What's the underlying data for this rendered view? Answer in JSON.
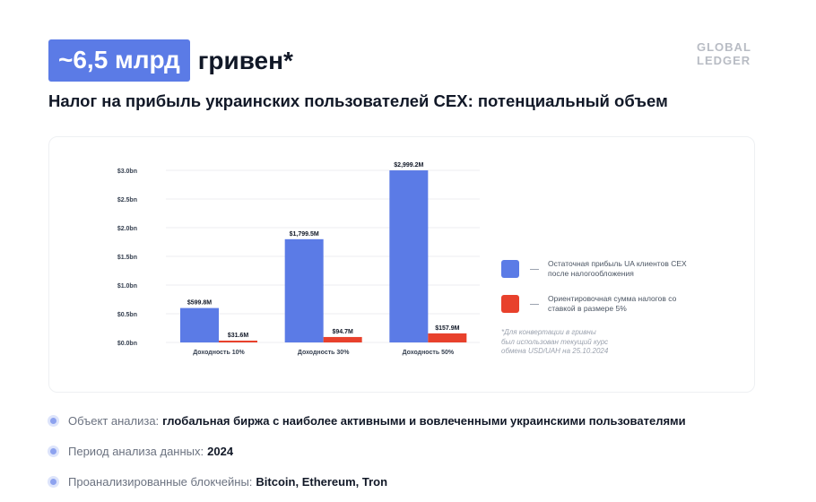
{
  "header": {
    "badge": "~6,5 млрд",
    "headline_rest": "гривен*",
    "subtitle": "Налог на прибыль украинских пользователей CEX: потенциальный объем"
  },
  "logo": {
    "line1": "GLOBAL",
    "line2": "LEDGER"
  },
  "chart_data": {
    "type": "bar",
    "categories": [
      "Доходность 10%",
      "Доходность 30%",
      "Доходность 50%"
    ],
    "series": [
      {
        "name": "Остаточная прибыль UA клиентов CEX после налогообложения",
        "color": "#5b7be6",
        "values": [
          599.8,
          1799.5,
          2999.2
        ],
        "labels": [
          "$599.8M",
          "$1,799.5M",
          "$2,999.2M"
        ]
      },
      {
        "name": "Ориентировочная сумма налогов со ставкой в размере 5%",
        "color": "#e8412c",
        "values": [
          31.6,
          94.7,
          157.9
        ],
        "labels": [
          "$31.6M",
          "$94.7M",
          "$157.9M"
        ]
      }
    ],
    "y_unit": "$M",
    "ylim": [
      0,
      3000
    ],
    "y_ticks": [
      0,
      500,
      1000,
      1500,
      2000,
      2500,
      3000
    ],
    "y_tick_labels": [
      "$0.0bn",
      "$0.5bn",
      "$1.0bn",
      "$1.5bn",
      "$2.0bn",
      "$2.5bn",
      "$3.0bn"
    ],
    "grid": true,
    "legend_position": "right"
  },
  "legend": {
    "items": [
      {
        "label": "Остаточная прибыль UA клиентов CEX после налогообложения",
        "color": "#5b7be6"
      },
      {
        "label": "Ориентировочная сумма налогов со ставкой в размере 5%",
        "color": "#e8412c"
      }
    ]
  },
  "note": "*Для конвертации в гривны был использован текущий курс обмена USD/UAH на 25.10.2024",
  "bullets": [
    {
      "label": "Объект анализа:",
      "value": "глобальная биржа с наиболее активными и вовлеченными украинскими пользователями"
    },
    {
      "label": "Период анализа данных:",
      "value": "2024"
    },
    {
      "label": "Проанализированные блокчейны:",
      "value": "Bitcoin, Ethereum, Tron"
    }
  ]
}
